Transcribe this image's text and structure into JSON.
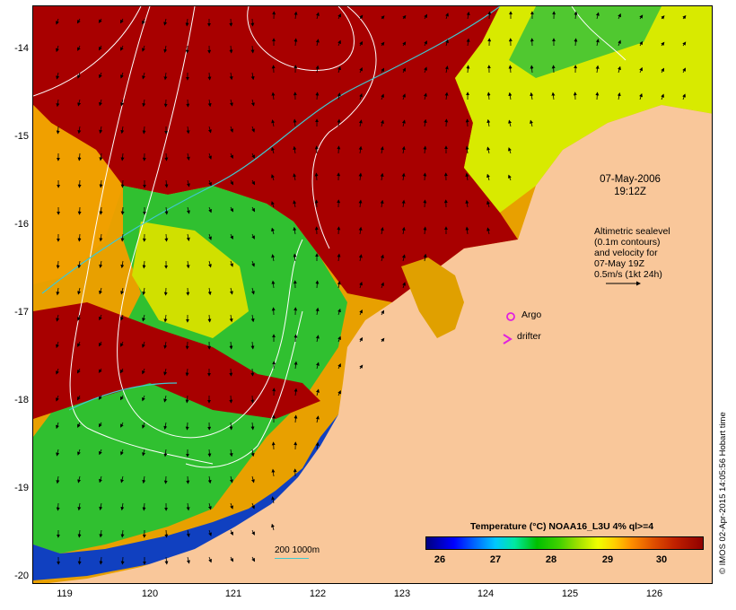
{
  "map": {
    "y_ticks": [
      "-14",
      "-15",
      "-16",
      "-17",
      "-18",
      "-19",
      "-20"
    ],
    "x_ticks": [
      "119",
      "120",
      "121",
      "122",
      "123",
      "124",
      "125",
      "126"
    ],
    "date": "07-May-2006",
    "time": "19:12Z",
    "legend_lines": [
      "Altimetric sealevel",
      "(0.1m contours)",
      "and velocity for",
      "07-May 19Z",
      "0.5m/s (1kt 24h)"
    ],
    "argo_label": "Argo",
    "drifter_label": "drifter",
    "scale_label": "200  1000m",
    "colorbar": {
      "title": "Temperature (°C) NOAA16_L3U 4% ql>=4",
      "ticks": [
        "26",
        "27",
        "28",
        "29",
        "30"
      ]
    },
    "credit": "© IMOS 02-Apr-2015 14:05:56 Hobart time",
    "colors": {
      "land": "#f9c79a",
      "hot": "#a00000",
      "argo": "#e020e0",
      "drifter": "#e020e0",
      "isobath": "#40c8d0"
    }
  }
}
